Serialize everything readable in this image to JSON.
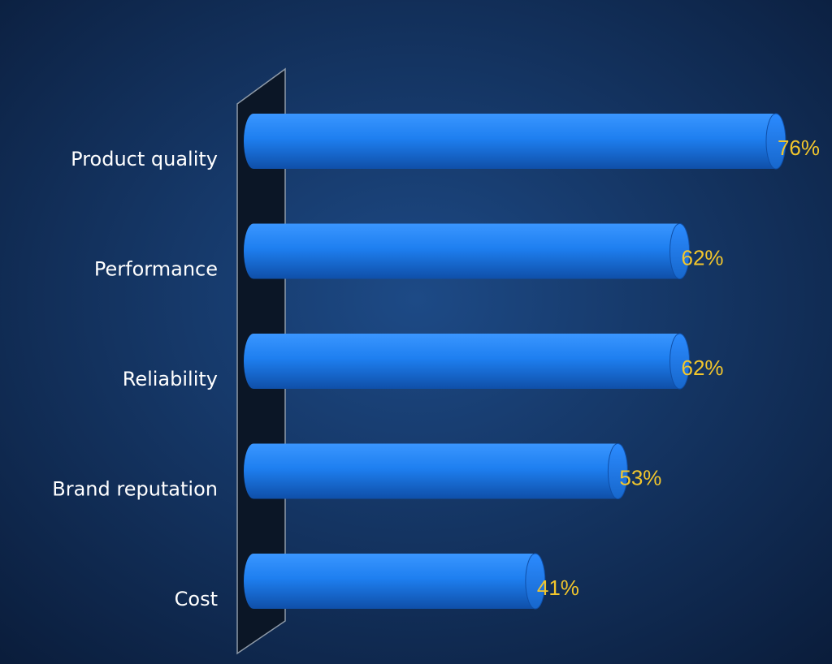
{
  "chart_data": {
    "type": "bar",
    "orientation": "horizontal",
    "categories": [
      "Product quality",
      "Performance",
      "Reliability",
      "Brand reputation",
      "Cost"
    ],
    "values": [
      76,
      62,
      62,
      53,
      41
    ],
    "value_labels": [
      "76%",
      "62%",
      "62%",
      "53%",
      "41%"
    ],
    "color": "#1e7ff0"
  }
}
